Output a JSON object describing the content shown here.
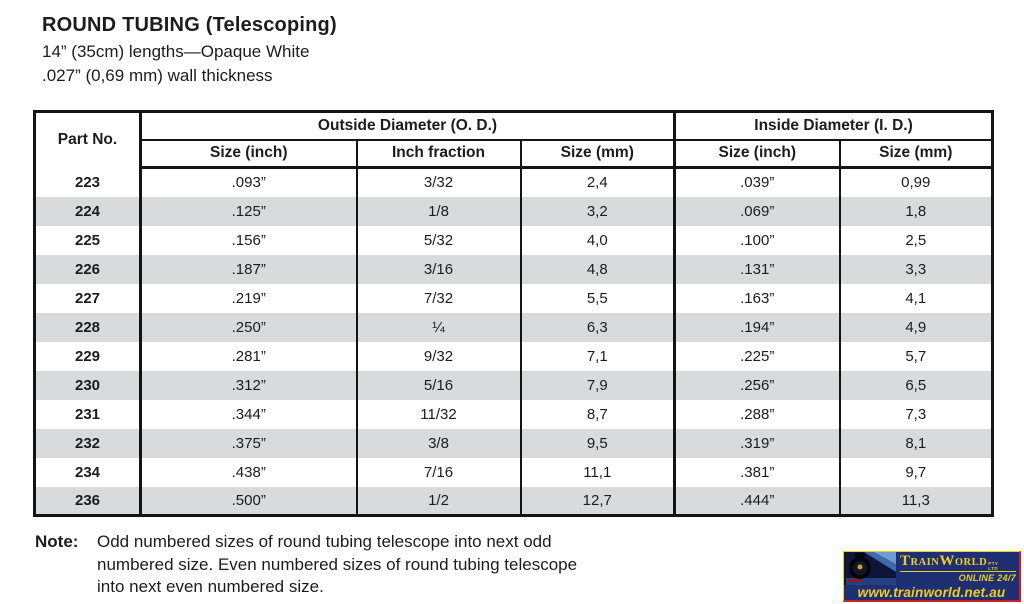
{
  "page": {
    "title": "ROUND TUBING (Telescoping)",
    "subtitle_lengths": "14” (35cm) lengths—Opaque White",
    "subtitle_wall": ".027” (0,69 mm) wall thickness"
  },
  "table": {
    "col_part": "Part No.",
    "group_od": "Outside Diameter (O. D.)",
    "group_id": "Inside Diameter (I. D.)",
    "sub_headers": [
      "Size (inch)",
      "Inch fraction",
      "Size (mm)",
      "Size (inch)",
      "Size (mm)"
    ],
    "rows": [
      {
        "part": "223",
        "od_inch": ".093”",
        "od_fraction": "3/32",
        "od_mm": "2,4",
        "id_inch": ".039”",
        "id_mm": "0,99"
      },
      {
        "part": "224",
        "od_inch": ".125”",
        "od_fraction": "1/8",
        "od_mm": "3,2",
        "id_inch": ".069”",
        "id_mm": "1,8"
      },
      {
        "part": "225",
        "od_inch": ".156”",
        "od_fraction": "5/32",
        "od_mm": "4,0",
        "id_inch": ".100”",
        "id_mm": "2,5"
      },
      {
        "part": "226",
        "od_inch": ".187”",
        "od_fraction": "3/16",
        "od_mm": "4,8",
        "id_inch": ".131”",
        "id_mm": "3,3"
      },
      {
        "part": "227",
        "od_inch": ".219”",
        "od_fraction": "7/32",
        "od_mm": "5,5",
        "id_inch": ".163”",
        "id_mm": "4,1"
      },
      {
        "part": "228",
        "od_inch": ".250”",
        "od_fraction": "¼",
        "od_mm": "6,3",
        "id_inch": ".194”",
        "id_mm": "4,9"
      },
      {
        "part": "229",
        "od_inch": ".281”",
        "od_fraction": "9/32",
        "od_mm": "7,1",
        "id_inch": ".225”",
        "id_mm": "5,7"
      },
      {
        "part": "230",
        "od_inch": ".312”",
        "od_fraction": "5/16",
        "od_mm": "7,9",
        "id_inch": ".256”",
        "id_mm": "6,5"
      },
      {
        "part": "231",
        "od_inch": ".344”",
        "od_fraction": "11/32",
        "od_mm": "8,7",
        "id_inch": ".288”",
        "id_mm": "7,3"
      },
      {
        "part": "232",
        "od_inch": ".375”",
        "od_fraction": "3/8",
        "od_mm": "9,5",
        "id_inch": ".319”",
        "id_mm": "8,1"
      },
      {
        "part": "234",
        "od_inch": ".438”",
        "od_fraction": "7/16",
        "od_mm": "11,1",
        "id_inch": ".381”",
        "id_mm": "9,7"
      },
      {
        "part": "236",
        "od_inch": ".500”",
        "od_fraction": "1/2",
        "od_mm": "12,7",
        "id_inch": ".444”",
        "id_mm": "11,3"
      }
    ]
  },
  "note": {
    "label": "Note:",
    "lines": [
      "Odd numbered sizes of round tubing telescope into next odd",
      "numbered size. Even numbered sizes of round tubing telescope",
      "into next even numbered size."
    ]
  },
  "logo": {
    "brand_t": "T",
    "brand_rain": "RAIN",
    "brand_w": "W",
    "brand_orld": "ORLD",
    "brand_suffix_top": "PTY",
    "brand_suffix_bottom": "LTD",
    "online": "ONLINE 24/7",
    "url": "www.trainworld.net.au"
  },
  "colors": {
    "row_alt_gray": "#d8dadb",
    "logo_blue": "#1e2f73",
    "logo_yellow": "#f0ce1f",
    "logo_red": "#cf1f1f"
  }
}
